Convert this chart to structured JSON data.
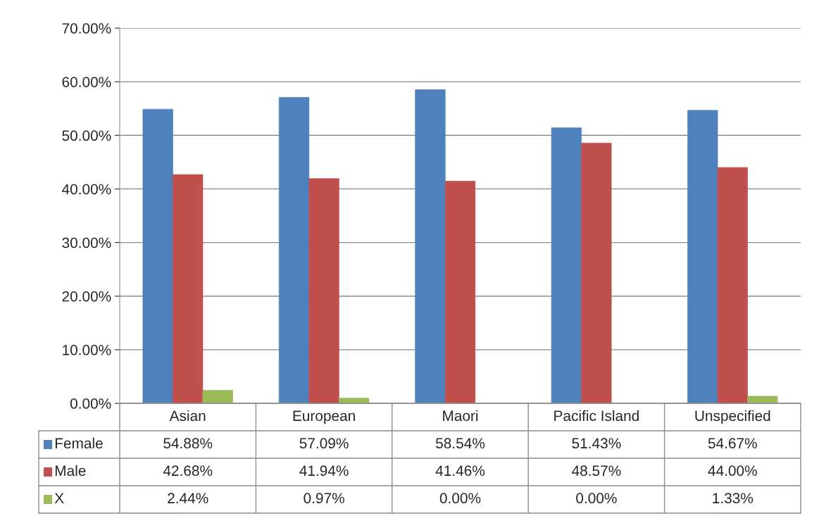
{
  "chart_data": {
    "type": "bar",
    "categories": [
      "Asian",
      "European",
      "Maori",
      "Pacific Island",
      "Unspecified"
    ],
    "series": [
      {
        "name": "Female",
        "color": "#4f81bd",
        "values": [
          54.88,
          57.09,
          58.54,
          51.43,
          54.67
        ],
        "value_labels": [
          "54.88%",
          "57.09%",
          "58.54%",
          "51.43%",
          "54.67%"
        ]
      },
      {
        "name": "Male",
        "color": "#c0504d",
        "values": [
          42.68,
          41.94,
          41.46,
          48.57,
          44.0
        ],
        "value_labels": [
          "42.68%",
          "41.94%",
          "41.46%",
          "48.57%",
          "44.00%"
        ]
      },
      {
        "name": "X",
        "color": "#9bbb59",
        "values": [
          2.44,
          0.97,
          0.0,
          0.0,
          1.33
        ],
        "value_labels": [
          "2.44%",
          "0.97%",
          "0.00%",
          "0.00%",
          "1.33%"
        ]
      }
    ],
    "ylim": [
      0,
      70
    ],
    "yticks": [
      {
        "value": 0,
        "label": "0.00%"
      },
      {
        "value": 10,
        "label": "10.00%"
      },
      {
        "value": 20,
        "label": "20.00%"
      },
      {
        "value": 30,
        "label": "30.00%"
      },
      {
        "value": 40,
        "label": "40.00%"
      },
      {
        "value": 50,
        "label": "50.00%"
      },
      {
        "value": 60,
        "label": "60.00%"
      },
      {
        "value": 70,
        "label": "70.00%"
      }
    ],
    "grid": "y",
    "legend": "bottom"
  }
}
